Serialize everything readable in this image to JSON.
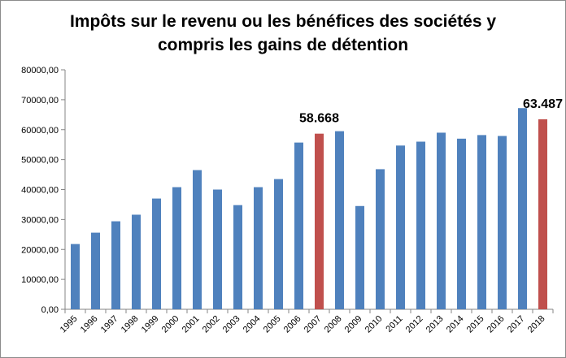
{
  "chart_data": {
    "type": "bar",
    "title_lines": [
      "Impôts sur le revenu ou les bénéfices des sociétés y",
      "compris les gains de détention"
    ],
    "xlabel": "",
    "ylabel": "",
    "categories": [
      "1995",
      "1996",
      "1997",
      "1998",
      "1999",
      "2000",
      "2001",
      "2002",
      "2003",
      "2004",
      "2005",
      "2006",
      "2007",
      "2008",
      "2009",
      "2010",
      "2011",
      "2012",
      "2013",
      "2014",
      "2015",
      "2016",
      "2017",
      "2018"
    ],
    "values": [
      21800,
      25600,
      29400,
      31600,
      37000,
      40800,
      46500,
      40000,
      34800,
      40800,
      43500,
      55700,
      58668,
      59500,
      34500,
      46800,
      54700,
      56000,
      59000,
      57000,
      58200,
      57900,
      67200,
      63487
    ],
    "highlight_categories": [
      "2007",
      "2018"
    ],
    "ylim": [
      0,
      80000
    ],
    "yticks": [
      "0,00",
      "10000,00",
      "20000,00",
      "30000,00",
      "40000,00",
      "50000,00",
      "60000,00",
      "70000,00",
      "80000,00"
    ],
    "ytick_values": [
      0,
      10000,
      20000,
      30000,
      40000,
      50000,
      60000,
      70000,
      80000
    ],
    "annotations": [
      {
        "category": "2007",
        "text": "58.668"
      },
      {
        "category": "2018",
        "text": "63.487"
      }
    ],
    "grid": false,
    "legend": "none",
    "colors": {
      "bar": "#4f81bd",
      "highlight": "#c0504d",
      "axis": "#868686"
    }
  }
}
